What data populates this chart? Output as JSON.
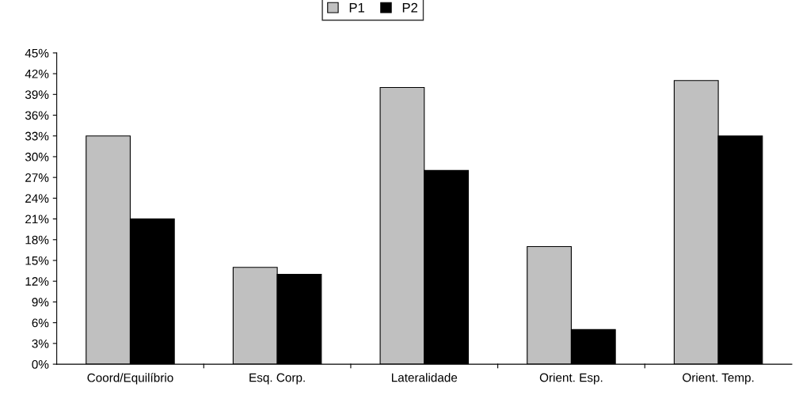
{
  "chart_data": {
    "type": "bar",
    "categories": [
      "Coord/Equilíbrio",
      "Esq. Corp.",
      "Lateralidade",
      "Orient. Esp.",
      "Orient. Temp."
    ],
    "series": [
      {
        "name": "P1",
        "color": "#c0c0c0",
        "values": [
          33,
          14,
          40,
          17,
          41
        ]
      },
      {
        "name": "P2",
        "color": "#000000",
        "values": [
          21,
          13,
          28,
          5,
          33
        ]
      }
    ],
    "ylim": [
      0,
      45
    ],
    "yticks": [
      {
        "value": 0,
        "label": "0%"
      },
      {
        "value": 3,
        "label": "3%"
      },
      {
        "value": 6,
        "label": "6%"
      },
      {
        "value": 9,
        "label": "9%"
      },
      {
        "value": 12,
        "label": "12%"
      },
      {
        "value": 15,
        "label": "15%"
      },
      {
        "value": 18,
        "label": "18%"
      },
      {
        "value": 21,
        "label": "21%"
      },
      {
        "value": 24,
        "label": "24%"
      },
      {
        "value": 27,
        "label": "27%"
      },
      {
        "value": 30,
        "label": "30%"
      },
      {
        "value": 33,
        "label": "33%"
      },
      {
        "value": 36,
        "label": "36%"
      },
      {
        "value": 39,
        "label": "39%"
      },
      {
        "value": 42,
        "label": "42%"
      },
      {
        "value": 45,
        "label": "45%"
      }
    ],
    "grid": false,
    "legend": "top"
  }
}
